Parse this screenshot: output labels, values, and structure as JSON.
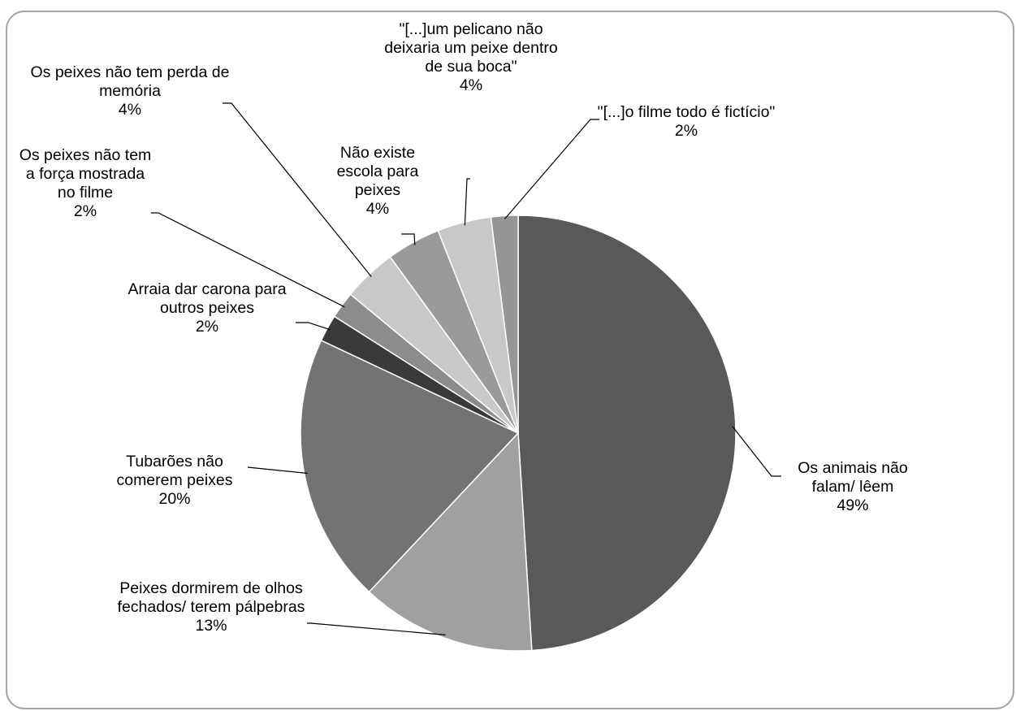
{
  "chart_data": {
    "type": "pie",
    "categories": [
      "Os animais não falam/ lêem",
      "Peixes dormirem de olhos fechados/ terem pálpebras",
      "Tubarões não comerem peixes",
      "Arraia dar carona para outros peixes",
      "Os peixes não tem a força mostrada no filme",
      "Os peixes não tem perda de memória",
      "Não existe escola para peixes",
      "\"[...]um pelicano não deixaria um peixe dentro de sua boca\"",
      "\"[...]o filme todo é fictício\""
    ],
    "values": [
      49,
      13,
      20,
      2,
      2,
      4,
      4,
      4,
      2
    ],
    "value_labels": [
      "49%",
      "13%",
      "20%",
      "2%",
      "2%",
      "4%",
      "4%",
      "4%",
      "2%"
    ],
    "colors": [
      "#595959",
      "#a0a0a0",
      "#737373",
      "#3a3a3a",
      "#8c8c8c",
      "#c8c8c8",
      "#9a9a9a",
      "#c8c8c8",
      "#969696"
    ]
  }
}
